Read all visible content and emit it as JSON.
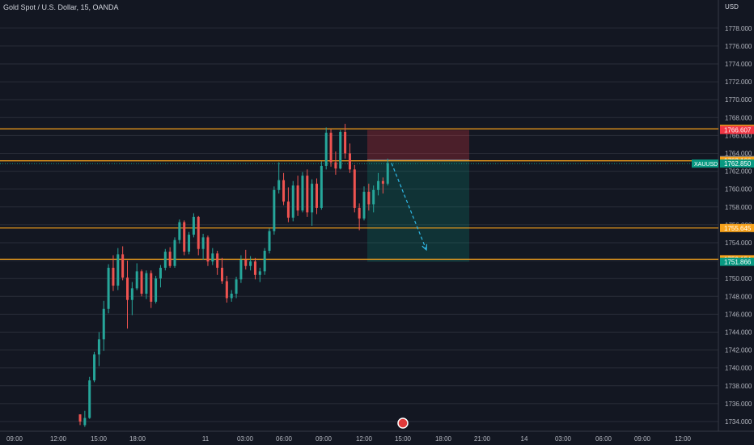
{
  "chart_data": {
    "type": "candlestick",
    "title": "Gold Spot / U.S. Dollar, 15, OANDA",
    "currency": "USD",
    "symbol": "XAUUSD",
    "ylim": [
      1733,
      1780
    ],
    "y_ticks": [
      1734,
      1736,
      1738,
      1740,
      1742,
      1744,
      1746,
      1748,
      1750,
      1752,
      1754,
      1756,
      1758,
      1760,
      1762,
      1764,
      1766,
      1768,
      1770,
      1772,
      1774,
      1776,
      1778
    ],
    "x_ticks": [
      "09:00",
      "12:00",
      "15:00",
      "18:00",
      "11",
      "03:00",
      "06:00",
      "09:00",
      "12:00",
      "15:00",
      "18:00",
      "21:00",
      "14",
      "03:00",
      "06:00",
      "09:00",
      "12:00"
    ],
    "price_labels": [
      {
        "text": "1766.738",
        "value": 1766.738,
        "color": "#f7a21b"
      },
      {
        "text": "1766.607",
        "value": 1766.607,
        "color": "#f23645"
      },
      {
        "text": "1763.259",
        "value": 1763.259,
        "color": "#787b86"
      },
      {
        "text": "1763.166",
        "value": 1763.166,
        "color": "#f7a21b"
      },
      {
        "text": "1762.850",
        "value": 1762.85,
        "color": "#089981"
      },
      {
        "text": "1755.645",
        "value": 1755.645,
        "color": "#f7a21b"
      },
      {
        "text": "1752.154",
        "value": 1752.154,
        "color": "#f7a21b"
      },
      {
        "text": "1751.866",
        "value": 1751.866,
        "color": "#089981"
      }
    ],
    "horizontal_lines": [
      1766.738,
      1763.166,
      1755.645,
      1752.154
    ],
    "current_price": 1762.85,
    "position": {
      "type": "short",
      "entry": 1763.259,
      "stop": 1766.607,
      "target": 1751.866
    },
    "arrow": {
      "from": 1762.9,
      "to": 1753.2
    },
    "candles": [
      [
        1734.8,
        1734.8,
        1733.6,
        1734.0
      ],
      [
        1733.6,
        1735.2,
        1733.4,
        1734.4
      ],
      [
        1734.4,
        1739.0,
        1734.3,
        1738.6
      ],
      [
        1738.6,
        1741.8,
        1738.4,
        1741.5
      ],
      [
        1741.5,
        1744.0,
        1740.2,
        1743.2
      ],
      [
        1743.2,
        1747.5,
        1741.9,
        1746.6
      ],
      [
        1746.6,
        1751.6,
        1746.1,
        1751.2
      ],
      [
        1751.2,
        1752.6,
        1748.6,
        1749.2
      ],
      [
        1749.2,
        1753.4,
        1748.7,
        1752.7
      ],
      [
        1752.7,
        1753.6,
        1749.8,
        1750.1
      ],
      [
        1750.1,
        1752.0,
        1744.4,
        1747.6
      ],
      [
        1747.6,
        1749.6,
        1745.9,
        1748.9
      ],
      [
        1748.9,
        1751.7,
        1748.7,
        1750.8
      ],
      [
        1750.8,
        1751.0,
        1748.0,
        1748.3
      ],
      [
        1748.3,
        1750.9,
        1747.7,
        1750.6
      ],
      [
        1750.6,
        1750.9,
        1746.7,
        1747.4
      ],
      [
        1747.4,
        1750.3,
        1747.2,
        1750.0
      ],
      [
        1750.0,
        1751.5,
        1749.0,
        1751.2
      ],
      [
        1751.2,
        1753.3,
        1750.9,
        1753.0
      ],
      [
        1753.0,
        1753.5,
        1751.2,
        1751.4
      ],
      [
        1751.4,
        1754.6,
        1751.2,
        1754.3
      ],
      [
        1754.3,
        1756.6,
        1753.9,
        1756.3
      ],
      [
        1756.3,
        1756.5,
        1752.6,
        1753.0
      ],
      [
        1753.0,
        1755.2,
        1752.7,
        1754.9
      ],
      [
        1754.9,
        1757.3,
        1754.6,
        1756.9
      ],
      [
        1756.9,
        1757.0,
        1752.6,
        1753.3
      ],
      [
        1753.3,
        1755.0,
        1752.1,
        1754.6
      ],
      [
        1754.6,
        1754.8,
        1751.4,
        1751.9
      ],
      [
        1751.9,
        1753.4,
        1751.5,
        1752.8
      ],
      [
        1752.8,
        1753.1,
        1750.4,
        1751.2
      ],
      [
        1751.2,
        1752.3,
        1749.4,
        1749.7
      ],
      [
        1749.7,
        1750.3,
        1747.3,
        1747.8
      ],
      [
        1747.8,
        1748.7,
        1747.4,
        1748.3
      ],
      [
        1748.3,
        1750.2,
        1747.8,
        1749.9
      ],
      [
        1749.9,
        1752.6,
        1749.5,
        1752.1
      ],
      [
        1752.1,
        1753.2,
        1751.0,
        1751.4
      ],
      [
        1751.4,
        1752.5,
        1750.9,
        1751.9
      ],
      [
        1751.9,
        1752.3,
        1749.9,
        1750.4
      ],
      [
        1750.4,
        1751.2,
        1749.6,
        1750.8
      ],
      [
        1750.8,
        1753.4,
        1750.4,
        1753.1
      ],
      [
        1753.1,
        1755.6,
        1752.8,
        1755.3
      ],
      [
        1755.3,
        1760.3,
        1754.9,
        1759.9
      ],
      [
        1759.9,
        1763.0,
        1759.5,
        1761.0
      ],
      [
        1761.0,
        1761.8,
        1758.2,
        1758.6
      ],
      [
        1758.6,
        1760.2,
        1756.3,
        1756.8
      ],
      [
        1756.8,
        1760.9,
        1756.4,
        1760.4
      ],
      [
        1760.4,
        1761.5,
        1757.0,
        1757.6
      ],
      [
        1757.6,
        1761.9,
        1757.4,
        1761.5
      ],
      [
        1761.5,
        1762.2,
        1756.9,
        1757.4
      ],
      [
        1757.4,
        1761.1,
        1755.9,
        1760.6
      ],
      [
        1760.6,
        1761.2,
        1757.2,
        1757.9
      ],
      [
        1757.9,
        1763.1,
        1757.7,
        1762.6
      ],
      [
        1762.6,
        1766.9,
        1762.2,
        1766.3
      ],
      [
        1766.3,
        1766.7,
        1762.5,
        1763.0
      ],
      [
        1763.0,
        1764.2,
        1761.6,
        1762.3
      ],
      [
        1762.3,
        1766.6,
        1762.2,
        1766.4
      ],
      [
        1766.4,
        1767.3,
        1763.4,
        1764.0
      ],
      [
        1764.0,
        1765.1,
        1761.8,
        1762.2
      ],
      [
        1762.2,
        1762.7,
        1757.4,
        1757.9
      ],
      [
        1757.9,
        1758.4,
        1755.4,
        1756.7
      ],
      [
        1756.7,
        1760.3,
        1756.5,
        1759.7
      ],
      [
        1759.7,
        1760.6,
        1757.6,
        1758.3
      ],
      [
        1758.3,
        1760.4,
        1757.4,
        1759.9
      ],
      [
        1759.9,
        1761.8,
        1759.3,
        1760.9
      ],
      [
        1760.9,
        1761.3,
        1759.5,
        1760.6
      ],
      [
        1760.6,
        1763.4,
        1760.4,
        1762.9
      ]
    ]
  }
}
